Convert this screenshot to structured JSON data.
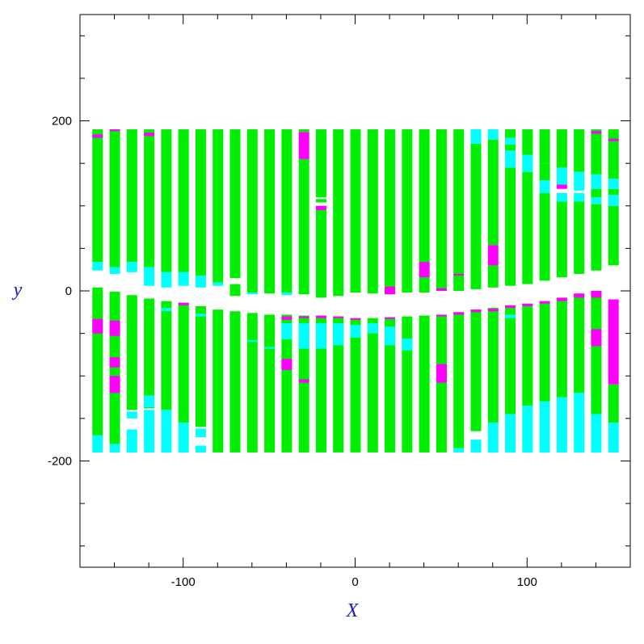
{
  "chart_data": {
    "type": "bar",
    "description_of_encoding": "",
    "xlabel": "X",
    "ylabel": "y",
    "xlim": [
      -160,
      160
    ],
    "ylim": [
      -325,
      325
    ],
    "x_ticks": [
      -100,
      0,
      100
    ],
    "y_ticks": [
      -200,
      0,
      200
    ],
    "x_tick_labels": [
      "-100",
      "0",
      "100"
    ],
    "y_tick_labels": [
      "-200",
      "0",
      "200"
    ],
    "grid": false,
    "colors": {
      "green": "#00ee00",
      "cyan": "#00ffff",
      "magenta": "#ff00ff",
      "axis": "#000000",
      "label": "#1a1acc"
    },
    "strips": [
      {
        "x": -150,
        "upper": [
          [
            34,
            190,
            "green"
          ],
          [
            24,
            34,
            "cyan"
          ],
          [
            180,
            184,
            "magenta"
          ]
        ],
        "lower": [
          [
            -170,
            4,
            "green"
          ],
          [
            -190,
            -170,
            "cyan"
          ],
          [
            -50,
            -33,
            "magenta"
          ]
        ]
      },
      {
        "x": -140,
        "upper": [
          [
            28,
            190,
            "green"
          ],
          [
            20,
            28,
            "cyan"
          ],
          [
            188,
            190,
            "magenta"
          ]
        ],
        "lower": [
          [
            -180,
            -1,
            "green"
          ],
          [
            -190,
            -180,
            "cyan"
          ],
          [
            -53,
            -35,
            "magenta"
          ],
          [
            -90,
            -78,
            "magenta"
          ],
          [
            -120,
            -100,
            "magenta"
          ]
        ]
      },
      {
        "x": -130,
        "upper": [
          [
            34,
            190,
            "green"
          ],
          [
            22,
            34,
            "cyan"
          ]
        ],
        "lower": [
          [
            -140,
            -5,
            "green"
          ],
          [
            -190,
            -163,
            "cyan"
          ],
          [
            -150,
            -142,
            "cyan"
          ]
        ]
      },
      {
        "x": -120,
        "upper": [
          [
            28,
            190,
            "green"
          ],
          [
            6,
            28,
            "cyan"
          ],
          [
            182,
            186,
            "magenta"
          ]
        ],
        "lower": [
          [
            -138,
            -9,
            "green"
          ],
          [
            -190,
            -140,
            "cyan"
          ],
          [
            -137,
            -123,
            "cyan"
          ]
        ]
      },
      {
        "x": -110,
        "upper": [
          [
            22,
            190,
            "green"
          ],
          [
            4,
            22,
            "cyan"
          ]
        ],
        "lower": [
          [
            -140,
            -12,
            "green"
          ],
          [
            -190,
            -140,
            "cyan"
          ],
          [
            -24,
            -20,
            "cyan"
          ]
        ]
      },
      {
        "x": -100,
        "upper": [
          [
            22,
            190,
            "green"
          ],
          [
            6,
            22,
            "cyan"
          ]
        ],
        "lower": [
          [
            -155,
            -14,
            "green"
          ],
          [
            -190,
            -155,
            "cyan"
          ],
          [
            -17,
            -14,
            "magenta"
          ]
        ]
      },
      {
        "x": -90,
        "upper": [
          [
            18,
            190,
            "green"
          ],
          [
            4,
            18,
            "cyan"
          ]
        ],
        "lower": [
          [
            -160,
            -18,
            "green"
          ],
          [
            -190,
            -182,
            "cyan"
          ],
          [
            -172,
            -162,
            "cyan"
          ],
          [
            -30,
            -27,
            "cyan"
          ]
        ]
      },
      {
        "x": -80,
        "upper": [
          [
            10,
            190,
            "green"
          ],
          [
            6,
            10,
            "cyan"
          ]
        ],
        "lower": [
          [
            -190,
            -22,
            "green"
          ]
        ]
      },
      {
        "x": -70,
        "upper": [
          [
            15,
            190,
            "green"
          ],
          [
            -6,
            8,
            "green"
          ]
        ],
        "lower": [
          [
            -190,
            -24,
            "green"
          ]
        ]
      },
      {
        "x": -60,
        "upper": [
          [
            -2,
            190,
            "green"
          ],
          [
            -4,
            -2,
            "cyan"
          ]
        ],
        "lower": [
          [
            -190,
            -26,
            "green"
          ],
          [
            -60,
            -58,
            "cyan"
          ]
        ]
      },
      {
        "x": -50,
        "upper": [
          [
            -3,
            190,
            "green"
          ]
        ],
        "lower": [
          [
            -190,
            -28,
            "green"
          ],
          [
            -68,
            -66,
            "cyan"
          ]
        ]
      },
      {
        "x": -40,
        "upper": [
          [
            -2,
            190,
            "green"
          ],
          [
            -5,
            -2,
            "cyan"
          ]
        ],
        "lower": [
          [
            -190,
            -28,
            "green"
          ],
          [
            -57,
            -38,
            "cyan"
          ],
          [
            -93,
            -80,
            "magenta"
          ],
          [
            -34,
            -30,
            "magenta"
          ]
        ]
      },
      {
        "x": -30,
        "upper": [
          [
            -4,
            155,
            "green"
          ],
          [
            155,
            187,
            "magenta"
          ],
          [
            187,
            190,
            "green"
          ]
        ],
        "lower": [
          [
            -190,
            -29,
            "green"
          ],
          [
            -68,
            -38,
            "cyan"
          ],
          [
            -108,
            -104,
            "magenta"
          ],
          [
            -32,
            -30,
            "magenta"
          ]
        ]
      },
      {
        "x": -20,
        "upper": [
          [
            -8,
            95,
            "green"
          ],
          [
            95,
            100,
            "magenta"
          ],
          [
            104,
            108,
            "green"
          ],
          [
            110,
            190,
            "green"
          ]
        ],
        "lower": [
          [
            -190,
            -30,
            "green"
          ],
          [
            -68,
            -38,
            "cyan"
          ],
          [
            -32,
            -29,
            "magenta"
          ]
        ]
      },
      {
        "x": -10,
        "upper": [
          [
            -6,
            190,
            "green"
          ]
        ],
        "lower": [
          [
            -190,
            -30,
            "green"
          ],
          [
            -64,
            -38,
            "cyan"
          ],
          [
            -32,
            -30,
            "magenta"
          ]
        ]
      },
      {
        "x": 0,
        "upper": [
          [
            -2,
            190,
            "green"
          ]
        ],
        "lower": [
          [
            -190,
            -32,
            "green"
          ],
          [
            -55,
            -40,
            "cyan"
          ],
          [
            -34,
            -32,
            "magenta"
          ]
        ]
      },
      {
        "x": 10,
        "upper": [
          [
            -3,
            190,
            "green"
          ]
        ],
        "lower": [
          [
            -190,
            -32,
            "green"
          ],
          [
            -50,
            -38,
            "cyan"
          ]
        ]
      },
      {
        "x": 20,
        "upper": [
          [
            -4,
            190,
            "green"
          ],
          [
            -4,
            5,
            "magenta"
          ]
        ],
        "lower": [
          [
            -190,
            -31,
            "green"
          ],
          [
            -64,
            -42,
            "cyan"
          ],
          [
            -33,
            -31,
            "magenta"
          ]
        ]
      },
      {
        "x": 30,
        "upper": [
          [
            -2,
            190,
            "green"
          ]
        ],
        "lower": [
          [
            -190,
            -30,
            "green"
          ],
          [
            -70,
            -56,
            "cyan"
          ]
        ]
      },
      {
        "x": 40,
        "upper": [
          [
            -2,
            190,
            "green"
          ],
          [
            16,
            34,
            "magenta"
          ]
        ],
        "lower": [
          [
            -190,
            -29,
            "green"
          ]
        ]
      },
      {
        "x": 50,
        "upper": [
          [
            0,
            190,
            "green"
          ],
          [
            0,
            3,
            "magenta"
          ]
        ],
        "lower": [
          [
            -190,
            -28,
            "green"
          ],
          [
            -108,
            -86,
            "magenta"
          ],
          [
            -30,
            -28,
            "magenta"
          ]
        ]
      },
      {
        "x": 60,
        "upper": [
          [
            0,
            190,
            "green"
          ],
          [
            18,
            20,
            "magenta"
          ]
        ],
        "lower": [
          [
            -185,
            -25,
            "green"
          ],
          [
            -190,
            -185,
            "cyan"
          ],
          [
            -28,
            -25,
            "magenta"
          ]
        ]
      },
      {
        "x": 70,
        "upper": [
          [
            2,
            173,
            "green"
          ],
          [
            173,
            190,
            "cyan"
          ]
        ],
        "lower": [
          [
            -165,
            -22,
            "green"
          ],
          [
            -190,
            -175,
            "cyan"
          ],
          [
            -25,
            -22,
            "magenta"
          ]
        ]
      },
      {
        "x": 80,
        "upper": [
          [
            4,
            30,
            "green"
          ],
          [
            30,
            54,
            "magenta"
          ],
          [
            54,
            178,
            "green"
          ],
          [
            178,
            190,
            "cyan"
          ]
        ],
        "lower": [
          [
            -155,
            -20,
            "green"
          ],
          [
            -190,
            -155,
            "cyan"
          ],
          [
            -24,
            -21,
            "magenta"
          ]
        ]
      },
      {
        "x": 90,
        "upper": [
          [
            6,
            145,
            "green"
          ],
          [
            145,
            165,
            "cyan"
          ],
          [
            165,
            172,
            "green"
          ],
          [
            172,
            180,
            "cyan"
          ],
          [
            180,
            190,
            "green"
          ]
        ],
        "lower": [
          [
            -145,
            -17,
            "green"
          ],
          [
            -190,
            -145,
            "cyan"
          ],
          [
            -32,
            -28,
            "cyan"
          ],
          [
            -20,
            -17,
            "magenta"
          ]
        ]
      },
      {
        "x": 100,
        "upper": [
          [
            8,
            140,
            "green"
          ],
          [
            140,
            160,
            "cyan"
          ],
          [
            160,
            190,
            "green"
          ]
        ],
        "lower": [
          [
            -135,
            -15,
            "green"
          ],
          [
            -190,
            -135,
            "cyan"
          ],
          [
            -18,
            -15,
            "magenta"
          ]
        ]
      },
      {
        "x": 110,
        "upper": [
          [
            12,
            115,
            "green"
          ],
          [
            115,
            130,
            "cyan"
          ],
          [
            130,
            150,
            "green"
          ],
          [
            150,
            190,
            "green"
          ]
        ],
        "lower": [
          [
            -130,
            -12,
            "green"
          ],
          [
            -190,
            -130,
            "cyan"
          ],
          [
            -15,
            -12,
            "magenta"
          ]
        ]
      },
      {
        "x": 120,
        "upper": [
          [
            16,
            105,
            "green"
          ],
          [
            105,
            115,
            "cyan"
          ],
          [
            120,
            125,
            "magenta"
          ],
          [
            125,
            145,
            "cyan"
          ],
          [
            145,
            190,
            "green"
          ]
        ],
        "lower": [
          [
            -125,
            -8,
            "green"
          ],
          [
            -190,
            -125,
            "cyan"
          ],
          [
            -12,
            -8,
            "magenta"
          ]
        ]
      },
      {
        "x": 130,
        "upper": [
          [
            20,
            105,
            "green"
          ],
          [
            105,
            115,
            "cyan"
          ],
          [
            118,
            140,
            "cyan"
          ],
          [
            140,
            190,
            "green"
          ]
        ],
        "lower": [
          [
            -120,
            -4,
            "green"
          ],
          [
            -190,
            -120,
            "cyan"
          ],
          [
            -8,
            -3,
            "magenta"
          ]
        ]
      },
      {
        "x": 140,
        "upper": [
          [
            24,
            102,
            "green"
          ],
          [
            102,
            110,
            "cyan"
          ],
          [
            110,
            120,
            "green"
          ],
          [
            120,
            137,
            "cyan"
          ],
          [
            137,
            190,
            "green"
          ],
          [
            185,
            188,
            "magenta"
          ]
        ],
        "lower": [
          [
            -145,
            0,
            "green"
          ],
          [
            -190,
            -145,
            "cyan"
          ],
          [
            -65,
            -45,
            "magenta"
          ],
          [
            -8,
            0,
            "magenta"
          ]
        ]
      },
      {
        "x": 150,
        "upper": [
          [
            30,
            100,
            "green"
          ],
          [
            100,
            113,
            "cyan"
          ],
          [
            113,
            120,
            "green"
          ],
          [
            120,
            132,
            "cyan"
          ],
          [
            132,
            190,
            "green"
          ],
          [
            176,
            179,
            "magenta"
          ]
        ],
        "lower": [
          [
            -155,
            -110,
            "green"
          ],
          [
            -160,
            -155,
            "cyan"
          ],
          [
            -190,
            -160,
            "cyan"
          ],
          [
            -110,
            -10,
            "magenta"
          ]
        ]
      }
    ],
    "strip_width": 6
  }
}
